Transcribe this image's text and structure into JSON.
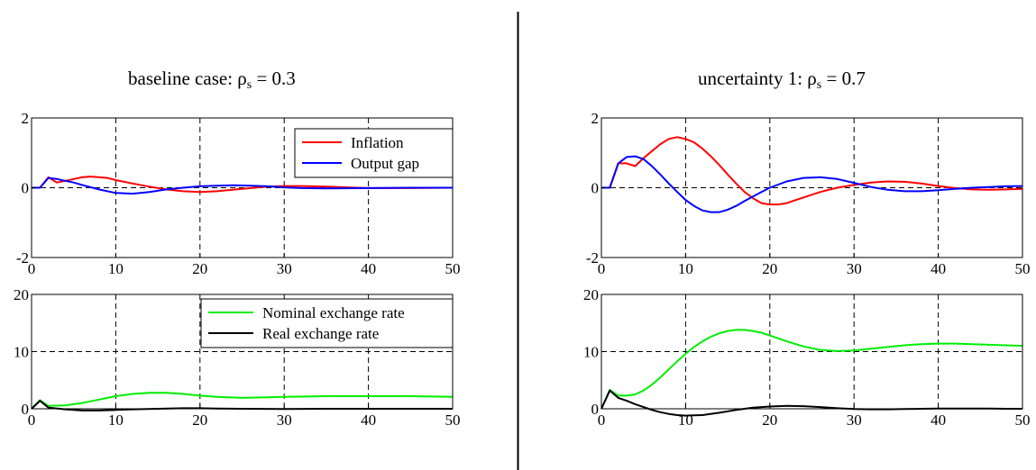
{
  "panel_titles": {
    "left": {
      "prefix": "baseline case: ",
      "sym": "ρ",
      "sub": "s",
      "suffix": " = 0.3"
    },
    "right": {
      "prefix": "uncertainty 1: ",
      "sym": "ρ",
      "sub": "s",
      "suffix": " = 0.7"
    }
  },
  "colors": {
    "inflation": "#ff0000",
    "output_gap": "#0000ff",
    "nominal": "#00ee00",
    "real": "#000000"
  },
  "chart_data": [
    {
      "id": "baseline-top",
      "type": "line",
      "xlim": [
        0,
        50
      ],
      "ylim": [
        -2,
        2
      ],
      "xticks": [
        "0",
        "10",
        "20",
        "30",
        "40",
        "50"
      ],
      "yticks": [
        "-2",
        "0",
        "2"
      ],
      "ytick_values": [
        -2,
        0,
        2
      ],
      "grid": true,
      "legend": "top-right",
      "series": [
        {
          "name": "Inflation",
          "color_key": "inflation",
          "x": [
            0,
            1,
            2,
            3,
            4,
            5,
            6,
            7,
            8,
            9,
            10,
            12,
            14,
            16,
            18,
            20,
            22,
            25,
            28,
            30,
            32,
            35,
            40,
            45,
            50
          ],
          "y": [
            0,
            0,
            0.3,
            0.15,
            0.2,
            0.25,
            0.3,
            0.32,
            0.3,
            0.28,
            0.22,
            0.12,
            0.03,
            -0.05,
            -0.1,
            -0.12,
            -0.1,
            -0.03,
            0.03,
            0.05,
            0.05,
            0.03,
            -0.01,
            -0.01,
            0
          ]
        },
        {
          "name": "Output gap",
          "color_key": "output_gap",
          "x": [
            0,
            1,
            2,
            3,
            4,
            5,
            6,
            8,
            10,
            12,
            14,
            16,
            18,
            20,
            22,
            24,
            26,
            28,
            30,
            32,
            35,
            40,
            45,
            50
          ],
          "y": [
            0,
            0,
            0.28,
            0.25,
            0.2,
            0.15,
            0.08,
            -0.05,
            -0.15,
            -0.17,
            -0.12,
            -0.05,
            0,
            0.04,
            0.06,
            0.07,
            0.06,
            0.04,
            0.01,
            -0.01,
            -0.02,
            -0.01,
            0,
            0
          ]
        }
      ]
    },
    {
      "id": "baseline-bottom",
      "type": "line",
      "xlim": [
        0,
        50
      ],
      "ylim": [
        0,
        20
      ],
      "xticks": [
        "0",
        "10",
        "20",
        "30",
        "40",
        "50"
      ],
      "yticks": [
        "0",
        "10",
        "20"
      ],
      "ytick_values": [
        0,
        10,
        20
      ],
      "grid": true,
      "legend": "top-right",
      "series": [
        {
          "name": "Nominal exchange rate",
          "color_key": "nominal",
          "x": [
            0,
            1,
            2,
            4,
            6,
            8,
            10,
            12,
            14,
            16,
            18,
            20,
            22,
            25,
            28,
            30,
            35,
            40,
            45,
            50
          ],
          "y": [
            0,
            1.5,
            0.5,
            0.6,
            1,
            1.6,
            2.2,
            2.6,
            2.8,
            2.8,
            2.6,
            2.3,
            2.1,
            1.9,
            2,
            2.1,
            2.2,
            2.2,
            2.2,
            2.1
          ]
        },
        {
          "name": "Real exchange rate",
          "color_key": "real",
          "x": [
            0,
            1,
            2,
            4,
            6,
            8,
            10,
            12,
            15,
            18,
            20,
            22,
            25,
            30,
            35,
            40,
            45,
            50
          ],
          "y": [
            0,
            1.4,
            0.2,
            -0.1,
            -0.3,
            -0.3,
            -0.2,
            -0.1,
            0,
            0.1,
            0.1,
            0.05,
            0,
            -0.05,
            0,
            0,
            0,
            0
          ]
        }
      ]
    },
    {
      "id": "uncertainty-top",
      "type": "line",
      "xlim": [
        0,
        50
      ],
      "ylim": [
        -2,
        2
      ],
      "xticks": [
        "0",
        "10",
        "20",
        "30",
        "40",
        "50"
      ],
      "yticks": [
        "-2",
        "0",
        "2"
      ],
      "ytick_values": [
        -2,
        0,
        2
      ],
      "grid": true,
      "legend": "none",
      "series": [
        {
          "color_key": "inflation",
          "x": [
            0,
            1,
            2,
            3,
            4,
            5,
            6,
            7,
            8,
            9,
            10,
            11,
            12,
            13,
            14,
            15,
            16,
            17,
            18,
            19,
            20,
            21,
            22,
            23,
            24,
            26,
            28,
            30,
            32,
            34,
            36,
            38,
            40,
            42,
            44,
            46,
            48,
            50
          ],
          "y": [
            0,
            0,
            0.7,
            0.7,
            0.62,
            0.85,
            1.05,
            1.25,
            1.4,
            1.45,
            1.4,
            1.3,
            1.12,
            0.9,
            0.65,
            0.38,
            0.12,
            -0.12,
            -0.3,
            -0.44,
            -0.48,
            -0.48,
            -0.44,
            -0.36,
            -0.28,
            -0.12,
            0,
            0.08,
            0.15,
            0.18,
            0.17,
            0.12,
            0.05,
            -0.01,
            -0.05,
            -0.06,
            -0.05,
            -0.03
          ]
        },
        {
          "color_key": "output_gap",
          "x": [
            0,
            1,
            2,
            3,
            4,
            5,
            6,
            7,
            8,
            9,
            10,
            11,
            12,
            13,
            14,
            15,
            16,
            17,
            18,
            19,
            20,
            22,
            24,
            26,
            28,
            30,
            32,
            34,
            36,
            38,
            40,
            42,
            44,
            46,
            48,
            50
          ],
          "y": [
            0,
            0,
            0.7,
            0.88,
            0.9,
            0.82,
            0.62,
            0.38,
            0.12,
            -0.12,
            -0.35,
            -0.52,
            -0.65,
            -0.7,
            -0.7,
            -0.63,
            -0.52,
            -0.38,
            -0.25,
            -0.12,
            0,
            0.18,
            0.28,
            0.3,
            0.25,
            0.14,
            0.02,
            -0.06,
            -0.1,
            -0.1,
            -0.07,
            -0.03,
            0,
            0.02,
            0.04,
            0.05
          ]
        }
      ]
    },
    {
      "id": "uncertainty-bottom",
      "type": "line",
      "xlim": [
        0,
        50
      ],
      "ylim": [
        0,
        20
      ],
      "xticks": [
        "0",
        "10",
        "20",
        "30",
        "40",
        "50"
      ],
      "yticks": [
        "0",
        "10",
        "20"
      ],
      "ytick_values": [
        0,
        10,
        20
      ],
      "grid": true,
      "legend": "none",
      "series": [
        {
          "color_key": "nominal",
          "x": [
            0,
            1,
            2,
            3,
            4,
            5,
            6,
            7,
            8,
            9,
            10,
            11,
            12,
            13,
            14,
            15,
            16,
            17,
            18,
            19,
            20,
            22,
            24,
            26,
            28,
            30,
            32,
            34,
            36,
            38,
            40,
            42,
            44,
            46,
            48,
            50
          ],
          "y": [
            0,
            3.3,
            2.3,
            2.3,
            2.5,
            3.2,
            4.2,
            5.5,
            6.9,
            8.3,
            9.6,
            10.8,
            11.8,
            12.6,
            13.2,
            13.6,
            13.8,
            13.8,
            13.6,
            13.3,
            12.8,
            11.8,
            10.9,
            10.3,
            10.1,
            10.2,
            10.5,
            10.8,
            11.1,
            11.3,
            11.4,
            11.4,
            11.3,
            11.2,
            11.1,
            11
          ]
        },
        {
          "color_key": "real",
          "x": [
            0,
            1,
            2,
            3,
            4,
            5,
            6,
            7,
            8,
            9,
            10,
            12,
            14,
            16,
            18,
            20,
            22,
            24,
            26,
            28,
            30,
            32,
            34,
            36,
            38,
            40,
            42,
            44,
            46,
            48,
            50
          ],
          "y": [
            0,
            3.2,
            1.9,
            1.4,
            0.8,
            0.3,
            -0.2,
            -0.6,
            -0.9,
            -1.1,
            -1.2,
            -1.1,
            -0.7,
            -0.2,
            0.2,
            0.4,
            0.5,
            0.45,
            0.3,
            0.1,
            -0.05,
            -0.1,
            -0.1,
            -0.05,
            0,
            0.05,
            0.05,
            0.05,
            0.03,
            0,
            0
          ]
        }
      ]
    }
  ]
}
